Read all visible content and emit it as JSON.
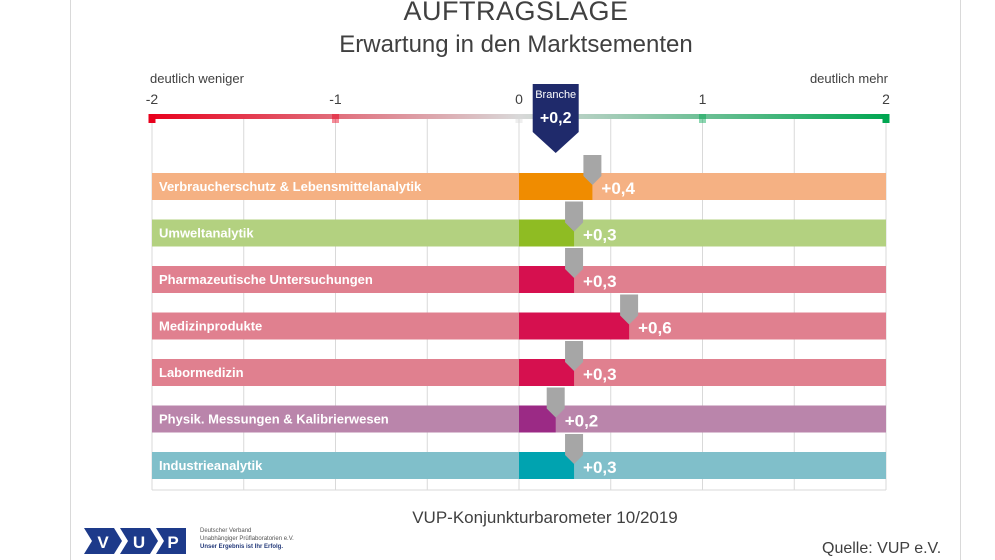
{
  "title": "AUFTRAGSLAGE",
  "subtitle": "Erwartung in den Marktsementen",
  "scale": {
    "left_label": "deutlich weniger",
    "right_label": "deutlich mehr"
  },
  "footer": "VUP-Konjunkturbarometer 10/2019",
  "source": "Quelle: VUP e.V.",
  "logo": {
    "letters": [
      "V",
      "U",
      "P"
    ],
    "line1": "Deutscher Verband",
    "line2": "Unabhängiger Prüflaboratorien e.V.",
    "slogan": "Unser Ergebnis ist Ihr Erfolg."
  },
  "chart_data": {
    "type": "bar",
    "orientation": "horizontal",
    "xlim": [
      -2,
      2
    ],
    "xticks": [
      -2,
      -1,
      0,
      1,
      2
    ],
    "tick_labels": [
      "-2",
      "-1",
      "0",
      "1",
      "2"
    ],
    "grid": true,
    "marker": {
      "label": "Branche",
      "value": 0.2,
      "value_label": "+0,2"
    },
    "categories": [
      "Verbraucherschutz & Lebensmittelanalytik",
      "Umweltanalytik",
      "Pharmazeutische Untersuchungen",
      "Medizinprodukte",
      "Labormedizin",
      "Physik. Messungen & Kalibrierwesen",
      "Industrieanalytik"
    ],
    "values": [
      0.4,
      0.3,
      0.3,
      0.6,
      0.3,
      0.2,
      0.3
    ],
    "value_labels": [
      "+0,4",
      "+0,3",
      "+0,3",
      "+0,6",
      "+0,3",
      "+0,2",
      "+0,3"
    ],
    "colors": [
      "#f08c00",
      "#8fbc23",
      "#d6104f",
      "#d6104f",
      "#d6104f",
      "#9b2a85",
      "#00a3b0"
    ],
    "band_colors": [
      "#f5b183",
      "#b3d180",
      "#e0808f",
      "#e0808f",
      "#e0808f",
      "#ba85ab",
      "#80bfca"
    ],
    "scale_colors": {
      "negative": "#e8001c",
      "neutral": "#d9d9d9",
      "positive": "#00a651"
    }
  }
}
